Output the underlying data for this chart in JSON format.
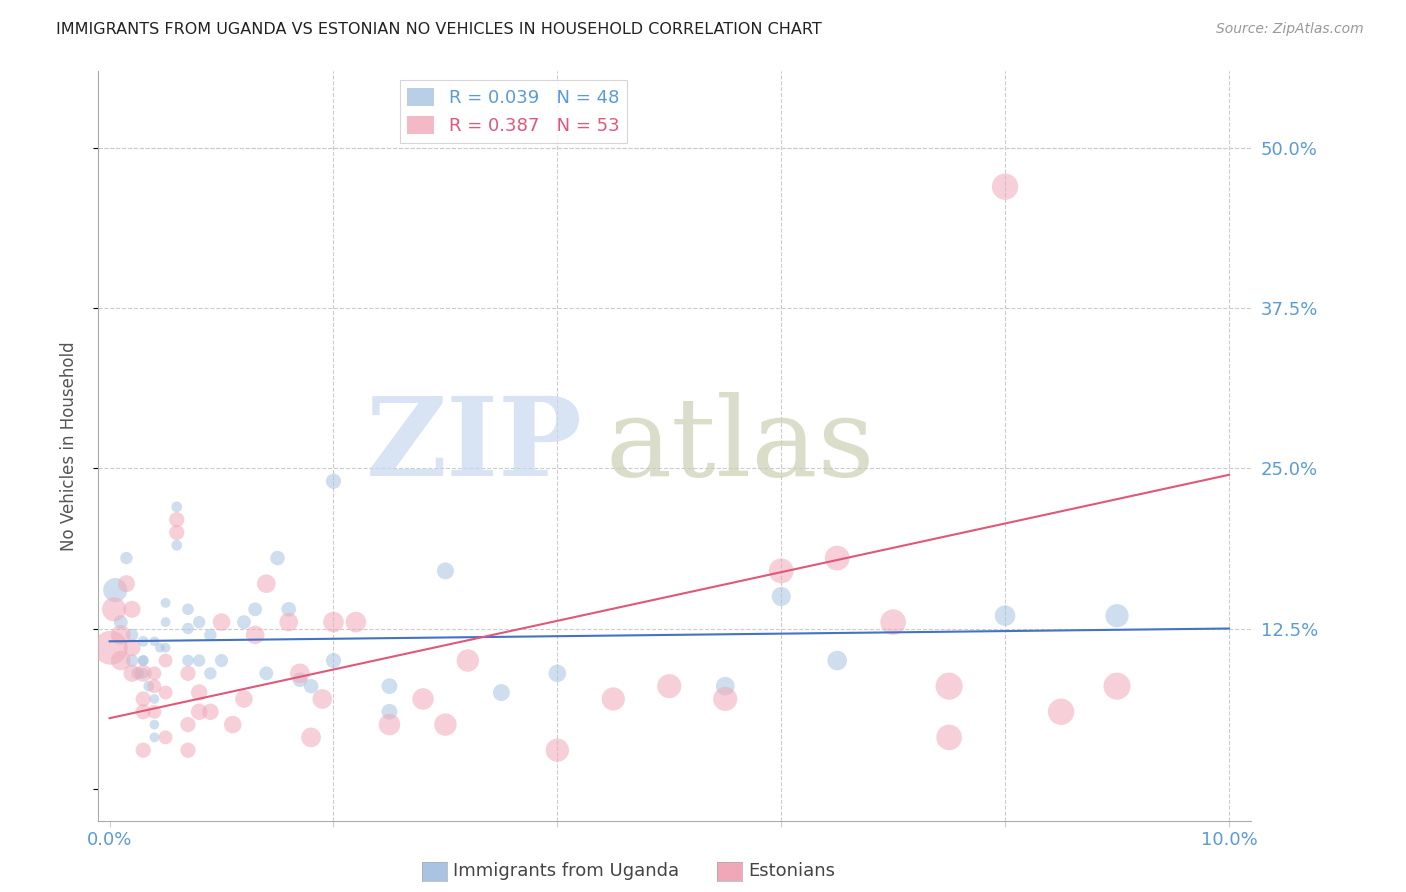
{
  "title": "IMMIGRANTS FROM UGANDA VS ESTONIAN NO VEHICLES IN HOUSEHOLD CORRELATION CHART",
  "source": "Source: ZipAtlas.com",
  "ylabel": "No Vehicles in Household",
  "legend1_label": "R = 0.039   N = 48",
  "legend2_label": "R = 0.387   N = 53",
  "color_blue": "#a8c4e0",
  "color_pink": "#f0a8b8",
  "color_blue_line": "#4472c4",
  "color_pink_line": "#e05878",
  "color_tick_labels": "#5b9bd5",
  "color_grid": "#cccccc",
  "xlim": [
    -0.001,
    0.102
  ],
  "ylim": [
    -0.025,
    0.56
  ],
  "ytick_positions": [
    0.0,
    0.125,
    0.25,
    0.375,
    0.5
  ],
  "ytick_labels": [
    "",
    "12.5%",
    "25.0%",
    "37.5%",
    "50.0%"
  ],
  "xtick_positions": [
    0.0,
    0.02,
    0.04,
    0.06,
    0.08,
    0.1
  ],
  "xtick_labels": [
    "0.0%",
    "",
    "",
    "",
    "",
    "10.0%"
  ],
  "uganda_x": [
    0.0005,
    0.001,
    0.0015,
    0.002,
    0.002,
    0.0025,
    0.003,
    0.003,
    0.003,
    0.003,
    0.0035,
    0.004,
    0.004,
    0.004,
    0.004,
    0.0045,
    0.005,
    0.005,
    0.005,
    0.006,
    0.006,
    0.007,
    0.007,
    0.007,
    0.008,
    0.008,
    0.009,
    0.009,
    0.01,
    0.012,
    0.013,
    0.014,
    0.015,
    0.016,
    0.017,
    0.018,
    0.02,
    0.02,
    0.025,
    0.025,
    0.03,
    0.035,
    0.04,
    0.055,
    0.06,
    0.065,
    0.08,
    0.09
  ],
  "uganda_y": [
    0.155,
    0.13,
    0.18,
    0.1,
    0.12,
    0.09,
    0.1,
    0.115,
    0.1,
    0.09,
    0.08,
    0.115,
    0.07,
    0.05,
    0.04,
    0.11,
    0.13,
    0.145,
    0.11,
    0.19,
    0.22,
    0.14,
    0.125,
    0.1,
    0.13,
    0.1,
    0.12,
    0.09,
    0.1,
    0.13,
    0.14,
    0.09,
    0.18,
    0.14,
    0.085,
    0.08,
    0.24,
    0.1,
    0.06,
    0.08,
    0.17,
    0.075,
    0.09,
    0.08,
    0.15,
    0.1,
    0.135,
    0.135
  ],
  "uganda_sizes": [
    300,
    100,
    80,
    80,
    80,
    80,
    60,
    60,
    60,
    60,
    60,
    50,
    50,
    50,
    50,
    50,
    50,
    50,
    50,
    60,
    60,
    70,
    70,
    70,
    80,
    80,
    80,
    80,
    90,
    100,
    100,
    100,
    110,
    110,
    110,
    110,
    120,
    120,
    130,
    130,
    150,
    150,
    160,
    180,
    190,
    200,
    220,
    280
  ],
  "estonian_x": [
    0.0001,
    0.0004,
    0.001,
    0.001,
    0.0015,
    0.002,
    0.002,
    0.002,
    0.003,
    0.003,
    0.003,
    0.003,
    0.004,
    0.004,
    0.004,
    0.005,
    0.005,
    0.005,
    0.006,
    0.006,
    0.007,
    0.007,
    0.007,
    0.008,
    0.008,
    0.009,
    0.01,
    0.011,
    0.012,
    0.013,
    0.014,
    0.016,
    0.017,
    0.018,
    0.019,
    0.02,
    0.022,
    0.025,
    0.028,
    0.03,
    0.032,
    0.04,
    0.045,
    0.05,
    0.055,
    0.06,
    0.065,
    0.07,
    0.075,
    0.08,
    0.085,
    0.09,
    0.075
  ],
  "estonian_y": [
    0.11,
    0.14,
    0.12,
    0.1,
    0.16,
    0.14,
    0.11,
    0.09,
    0.09,
    0.07,
    0.06,
    0.03,
    0.09,
    0.08,
    0.06,
    0.1,
    0.075,
    0.04,
    0.21,
    0.2,
    0.09,
    0.05,
    0.03,
    0.06,
    0.075,
    0.06,
    0.13,
    0.05,
    0.07,
    0.12,
    0.16,
    0.13,
    0.09,
    0.04,
    0.07,
    0.13,
    0.13,
    0.05,
    0.07,
    0.05,
    0.1,
    0.03,
    0.07,
    0.08,
    0.07,
    0.17,
    0.18,
    0.13,
    0.04,
    0.47,
    0.06,
    0.08,
    0.08
  ],
  "estonian_sizes": [
    600,
    300,
    200,
    200,
    150,
    150,
    150,
    150,
    150,
    120,
    120,
    120,
    100,
    100,
    100,
    100,
    100,
    100,
    120,
    120,
    120,
    120,
    120,
    140,
    140,
    140,
    160,
    160,
    160,
    180,
    180,
    180,
    200,
    200,
    200,
    220,
    220,
    240,
    240,
    260,
    260,
    280,
    280,
    300,
    300,
    320,
    320,
    340,
    340,
    360,
    360,
    380,
    380
  ],
  "uganda_trendline_x": [
    0.0,
    0.1
  ],
  "uganda_trendline_y": [
    0.115,
    0.125
  ],
  "estonian_trendline_x": [
    0.0,
    0.1
  ],
  "estonian_trendline_y": [
    0.055,
    0.245
  ]
}
